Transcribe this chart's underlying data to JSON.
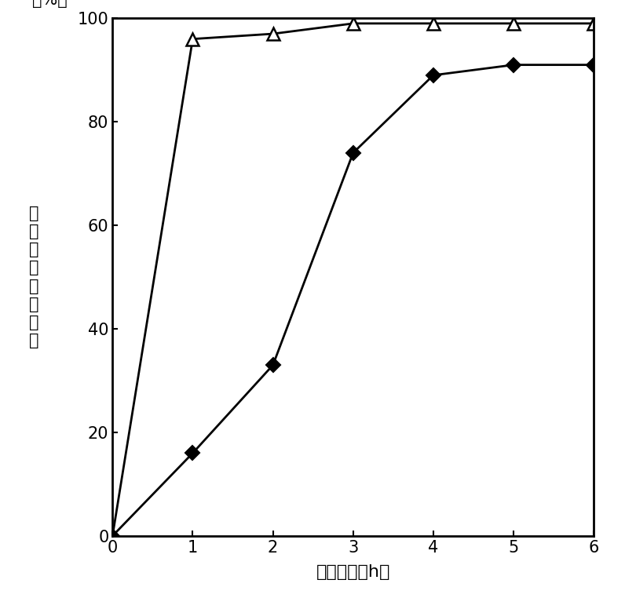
{
  "triangle_x": [
    0,
    1,
    2,
    3,
    4,
    5,
    6
  ],
  "triangle_y": [
    0,
    96,
    97,
    99,
    99,
    99,
    99
  ],
  "diamond_x": [
    0,
    1,
    2,
    3,
    4,
    5,
    6
  ],
  "diamond_y": [
    0,
    16,
    33,
    74,
    89,
    91,
    91
  ],
  "xlabel": "反应时间（h）",
  "ylabel_chars": [
    "间",
    "二",
    "碀",
    "基",
    "本",
    "转",
    "化",
    "率"
  ],
  "ylabel_suffix": "（%）",
  "xlim": [
    0,
    6
  ],
  "ylim": [
    0,
    100
  ],
  "xticks": [
    0,
    1,
    2,
    3,
    4,
    5,
    6
  ],
  "yticks": [
    0,
    20,
    40,
    60,
    80,
    100
  ],
  "line_color": "#000000",
  "background_color": "#ffffff",
  "xlabel_fontsize": 16,
  "ylabel_fontsize": 15,
  "tick_fontsize": 15
}
